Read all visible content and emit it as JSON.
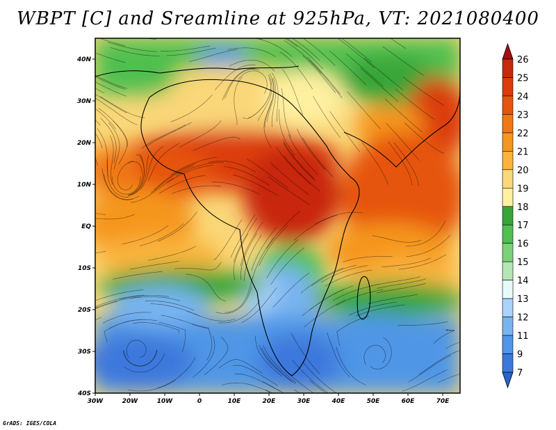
{
  "title": "WBPT [C] and Sreamline at 925hPa, VT: 2021080400",
  "credit": "GrADS: IGES/COLA",
  "map": {
    "lon_range": [
      -30,
      75
    ],
    "lat_range": [
      -40,
      45
    ],
    "x_tick_labels": [
      "30W",
      "20W",
      "10W",
      "0",
      "10E",
      "20E",
      "30E",
      "40E",
      "50E",
      "60E",
      "70E"
    ],
    "x_tick_values": [
      -30,
      -20,
      -10,
      0,
      10,
      20,
      30,
      40,
      50,
      60,
      70
    ],
    "y_tick_labels": [
      "40N",
      "30N",
      "20N",
      "10N",
      "EQ",
      "10S",
      "20S",
      "30S",
      "40S"
    ],
    "y_tick_values": [
      40,
      30,
      20,
      10,
      0,
      -10,
      -20,
      -30,
      -40
    ]
  },
  "colorbar": {
    "levels": [
      "26",
      "25",
      "24",
      "23",
      "22",
      "21",
      "20",
      "19",
      "18",
      "17",
      "16",
      "15",
      "14",
      "13",
      "12",
      "11",
      "9",
      "7"
    ],
    "colors": [
      "#a50f0f",
      "#c8280c",
      "#dc3c0a",
      "#e6550d",
      "#f07814",
      "#f5961e",
      "#fab43c",
      "#fad778",
      "#fff0a0",
      "#37a537",
      "#50c050",
      "#78d278",
      "#b4e6b4",
      "#e6fafa",
      "#aad2fa",
      "#78b4f0",
      "#5096e6",
      "#3c78dc",
      "#2864c8"
    ]
  }
}
